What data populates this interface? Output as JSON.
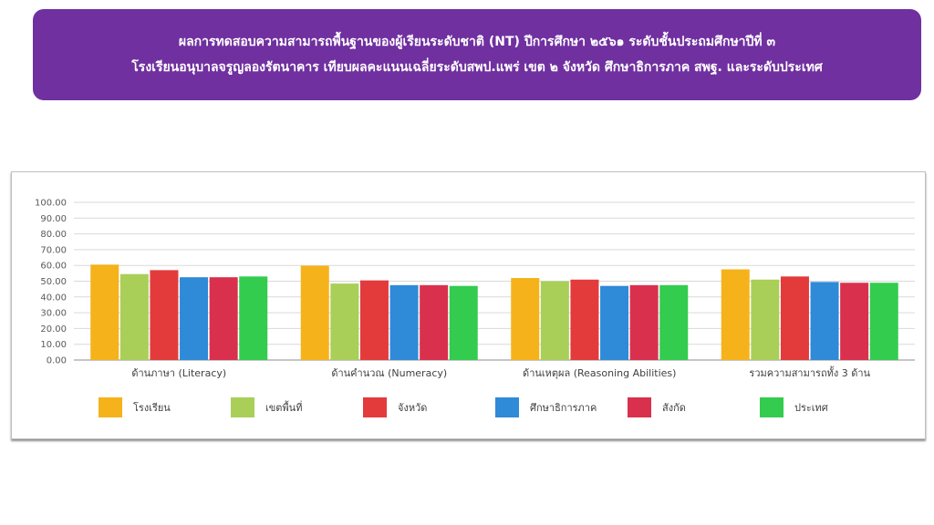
{
  "header": {
    "line1": "ผลการทดสอบความสามารถพื้นฐานของผู้เรียนระดับชาติ (NT) ปีการศึกษา ๒๕๖๑ ระดับชั้นประถมศึกษาปีที่ ๓",
    "line2": "โรงเรียนอนุบาลจรูญลองรัตนาคาร เทียบผลคะแนนเฉลี่ยระดับสพป.แพร่ เขต ๒  จังหวัด ศึกษาธิการภาค สพฐ. และระดับประเทศ"
  },
  "chart_data": {
    "type": "bar",
    "title": "",
    "xlabel": "",
    "ylabel": "",
    "ylim": [
      0,
      100
    ],
    "ytick_step": 10,
    "ytick_labels": [
      "0.00",
      "10.00",
      "20.00",
      "30.00",
      "40.00",
      "50.00",
      "60.00",
      "70.00",
      "80.00",
      "90.00",
      "100.00"
    ],
    "grid": true,
    "legend_position": "bottom",
    "categories": [
      "ด้านภาษา (Literacy)",
      "ด้านคำนวณ (Numeracy)",
      "ด้านเหตุผล (Reasoning Abilities)",
      "รวมความสามารถทั้ง 3 ด้าน"
    ],
    "series": [
      {
        "name": "โรงเรียน",
        "color": "#f5b21a",
        "values": [
          60.5,
          59.8,
          52.0,
          57.5
        ]
      },
      {
        "name": "เขตพื้นที่",
        "color": "#a9cf58",
        "values": [
          54.5,
          48.5,
          50.0,
          51.0
        ]
      },
      {
        "name": "จังหวัด",
        "color": "#e33b3b",
        "values": [
          57.0,
          50.5,
          51.0,
          53.0
        ]
      },
      {
        "name": "ศึกษาธิการภาค",
        "color": "#2f8ad8",
        "values": [
          52.5,
          47.5,
          47.0,
          49.5
        ]
      },
      {
        "name": "สังกัด",
        "color": "#d9304e",
        "values": [
          52.5,
          47.5,
          47.5,
          49.0
        ]
      },
      {
        "name": "ประเทศ",
        "color": "#33cc4f",
        "values": [
          53.0,
          47.0,
          47.5,
          49.0
        ]
      }
    ]
  }
}
